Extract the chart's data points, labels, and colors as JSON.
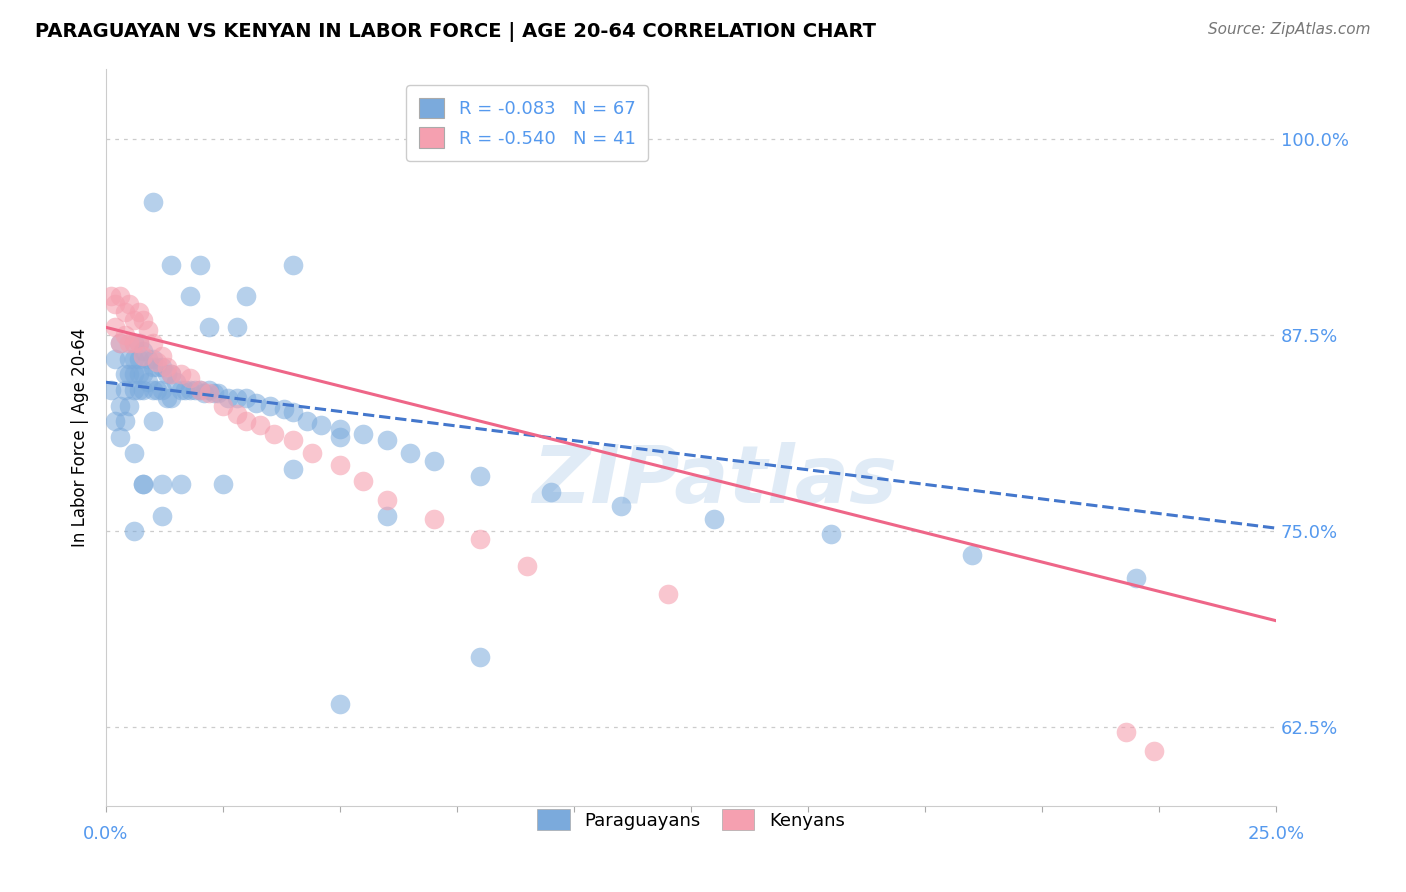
{
  "title": "PARAGUAYAN VS KENYAN IN LABOR FORCE | AGE 20-64 CORRELATION CHART",
  "source": "Source: ZipAtlas.com",
  "ylabel": "In Labor Force | Age 20-64",
  "ylabel_ticks": [
    "100.0%",
    "87.5%",
    "75.0%",
    "62.5%"
  ],
  "ylabel_vals": [
    1.0,
    0.875,
    0.75,
    0.625
  ],
  "xlim": [
    0.0,
    0.25
  ],
  "ylim": [
    0.575,
    1.045
  ],
  "r_paraguayan": -0.083,
  "n_paraguayan": 67,
  "r_kenyan": -0.54,
  "n_kenyan": 41,
  "paraguayan_color": "#7BAADC",
  "kenyan_color": "#F5A0B0",
  "trend_paraguayan_color": "#4477CC",
  "trend_kenyan_color": "#EE6688",
  "watermark": "ZIPatlas",
  "par_x": [
    0.001,
    0.002,
    0.002,
    0.003,
    0.003,
    0.003,
    0.004,
    0.004,
    0.004,
    0.005,
    0.005,
    0.005,
    0.006,
    0.006,
    0.006,
    0.006,
    0.007,
    0.007,
    0.007,
    0.007,
    0.008,
    0.008,
    0.008,
    0.009,
    0.009,
    0.01,
    0.01,
    0.01,
    0.011,
    0.011,
    0.012,
    0.012,
    0.013,
    0.013,
    0.014,
    0.014,
    0.015,
    0.016,
    0.017,
    0.018,
    0.019,
    0.02,
    0.021,
    0.022,
    0.023,
    0.024,
    0.026,
    0.028,
    0.03,
    0.032,
    0.035,
    0.038,
    0.04,
    0.043,
    0.046,
    0.05,
    0.055,
    0.06,
    0.065,
    0.07,
    0.08,
    0.095,
    0.11,
    0.13,
    0.155,
    0.185,
    0.22
  ],
  "par_y": [
    0.84,
    0.86,
    0.82,
    0.87,
    0.83,
    0.81,
    0.85,
    0.84,
    0.82,
    0.86,
    0.85,
    0.83,
    0.87,
    0.86,
    0.85,
    0.84,
    0.87,
    0.86,
    0.85,
    0.84,
    0.865,
    0.85,
    0.84,
    0.86,
    0.845,
    0.86,
    0.855,
    0.84,
    0.855,
    0.84,
    0.855,
    0.84,
    0.85,
    0.835,
    0.85,
    0.835,
    0.845,
    0.84,
    0.84,
    0.84,
    0.84,
    0.84,
    0.838,
    0.84,
    0.838,
    0.838,
    0.835,
    0.835,
    0.835,
    0.832,
    0.83,
    0.828,
    0.826,
    0.82,
    0.818,
    0.815,
    0.812,
    0.808,
    0.8,
    0.795,
    0.785,
    0.775,
    0.766,
    0.758,
    0.748,
    0.735,
    0.72
  ],
  "par_y_extra": [
    0.96,
    0.78,
    0.75,
    0.92,
    0.78,
    0.92,
    0.9,
    0.88,
    0.78,
    0.78,
    0.82,
    0.8,
    0.9,
    0.88,
    0.78,
    0.92,
    0.81,
    0.67,
    0.76,
    0.79,
    0.76,
    0.64
  ],
  "par_x_extra": [
    0.01,
    0.008,
    0.006,
    0.014,
    0.012,
    0.02,
    0.018,
    0.022,
    0.025,
    0.008,
    0.01,
    0.006,
    0.03,
    0.028,
    0.016,
    0.04,
    0.05,
    0.08,
    0.06,
    0.04,
    0.012,
    0.05
  ],
  "ken_x": [
    0.001,
    0.002,
    0.002,
    0.003,
    0.003,
    0.004,
    0.004,
    0.005,
    0.005,
    0.006,
    0.006,
    0.007,
    0.007,
    0.008,
    0.008,
    0.009,
    0.01,
    0.011,
    0.012,
    0.013,
    0.014,
    0.016,
    0.018,
    0.02,
    0.022,
    0.025,
    0.028,
    0.03,
    0.033,
    0.036,
    0.04,
    0.044,
    0.05,
    0.055,
    0.06,
    0.07,
    0.08,
    0.09,
    0.12,
    0.218,
    0.224
  ],
  "ken_y": [
    0.9,
    0.895,
    0.88,
    0.9,
    0.87,
    0.89,
    0.875,
    0.895,
    0.87,
    0.885,
    0.87,
    0.89,
    0.87,
    0.885,
    0.862,
    0.878,
    0.87,
    0.858,
    0.862,
    0.855,
    0.85,
    0.85,
    0.848,
    0.84,
    0.838,
    0.83,
    0.825,
    0.82,
    0.818,
    0.812,
    0.808,
    0.8,
    0.792,
    0.782,
    0.77,
    0.758,
    0.745,
    0.728,
    0.71,
    0.622,
    0.61
  ],
  "trend_par_x0": 0.0,
  "trend_par_y0": 0.845,
  "trend_par_x1": 0.25,
  "trend_par_y1": 0.752,
  "trend_ken_x0": 0.0,
  "trend_ken_y0": 0.88,
  "trend_ken_x1": 0.25,
  "trend_ken_y1": 0.693
}
